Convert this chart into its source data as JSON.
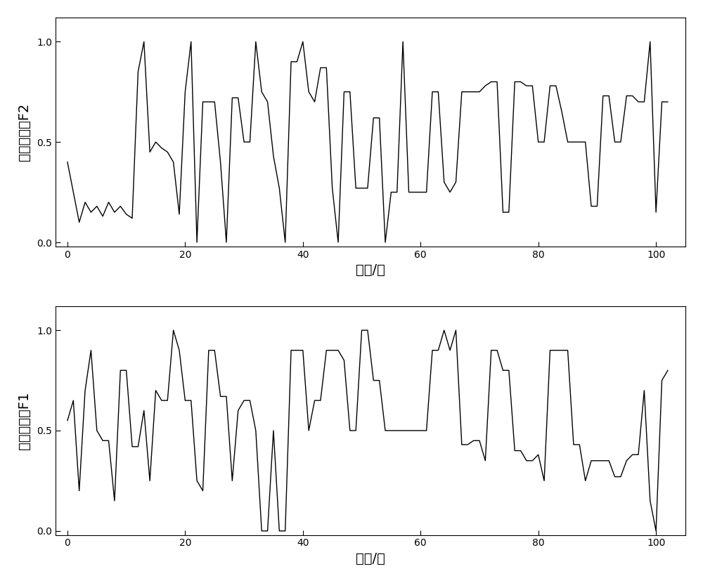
{
  "ylabel1": "归一化载荷F2",
  "ylabel2": "归一化载荷F1",
  "xlabel": "时间/秒",
  "xlim": [
    -2,
    105
  ],
  "ylim": [
    -0.02,
    1.12
  ],
  "yticks": [
    0.0,
    0.5,
    1.0
  ],
  "xticks": [
    0,
    20,
    40,
    60,
    80,
    100
  ],
  "f2_x": [
    0,
    1,
    2,
    3,
    4,
    5,
    6,
    7,
    8,
    9,
    10,
    11,
    12,
    13,
    14,
    15,
    16,
    17,
    18,
    19,
    20,
    21,
    22,
    23,
    24,
    25,
    26,
    27,
    28,
    29,
    30,
    31,
    32,
    33,
    34,
    35,
    36,
    37,
    38,
    39,
    40,
    41,
    42,
    43,
    44,
    45,
    46,
    47,
    48,
    49,
    50,
    51,
    52,
    53,
    54,
    55,
    56,
    57,
    58,
    59,
    60,
    61,
    62,
    63,
    64,
    65,
    66,
    67,
    68,
    69,
    70,
    71,
    72,
    73,
    74,
    75,
    76,
    77,
    78,
    79,
    80,
    81,
    82,
    83,
    84,
    85,
    86,
    87,
    88,
    89,
    90,
    91,
    92,
    93,
    94,
    95,
    96,
    97,
    98,
    99,
    100,
    101,
    102
  ],
  "f2_y": [
    0.4,
    0.25,
    0.1,
    0.2,
    0.15,
    0.18,
    0.13,
    0.2,
    0.15,
    0.18,
    0.14,
    0.12,
    0.85,
    1.0,
    0.45,
    0.5,
    0.47,
    0.45,
    0.4,
    0.14,
    0.75,
    1.0,
    0.0,
    0.7,
    0.7,
    0.7,
    0.4,
    0.0,
    0.72,
    0.72,
    0.5,
    0.5,
    1.0,
    0.75,
    0.7,
    0.43,
    0.27,
    0.0,
    0.9,
    0.9,
    1.0,
    0.75,
    0.7,
    0.87,
    0.87,
    0.27,
    0.0,
    0.75,
    0.75,
    0.27,
    0.27,
    0.27,
    0.62,
    0.62,
    0.0,
    0.25,
    0.25,
    1.0,
    0.25,
    0.25,
    0.25,
    0.25,
    0.75,
    0.75,
    0.3,
    0.25,
    0.3,
    0.75,
    0.75,
    0.75,
    0.75,
    0.78,
    0.8,
    0.8,
    0.15,
    0.15,
    0.8,
    0.8,
    0.78,
    0.78,
    0.5,
    0.5,
    0.78,
    0.78,
    0.65,
    0.5,
    0.5,
    0.5,
    0.5,
    0.18,
    0.18,
    0.73,
    0.73,
    0.5,
    0.5,
    0.73,
    0.73,
    0.7,
    0.7,
    1.0,
    0.15,
    0.7,
    0.7
  ],
  "f1_x": [
    0,
    1,
    2,
    3,
    4,
    5,
    6,
    7,
    8,
    9,
    10,
    11,
    12,
    13,
    14,
    15,
    16,
    17,
    18,
    19,
    20,
    21,
    22,
    23,
    24,
    25,
    26,
    27,
    28,
    29,
    30,
    31,
    32,
    33,
    34,
    35,
    36,
    37,
    38,
    39,
    40,
    41,
    42,
    43,
    44,
    45,
    46,
    47,
    48,
    49,
    50,
    51,
    52,
    53,
    54,
    55,
    56,
    57,
    58,
    59,
    60,
    61,
    62,
    63,
    64,
    65,
    66,
    67,
    68,
    69,
    70,
    71,
    72,
    73,
    74,
    75,
    76,
    77,
    78,
    79,
    80,
    81,
    82,
    83,
    84,
    85,
    86,
    87,
    88,
    89,
    90,
    91,
    92,
    93,
    94,
    95,
    96,
    97,
    98,
    99,
    100,
    101,
    102
  ],
  "f1_y": [
    0.55,
    0.65,
    0.2,
    0.7,
    0.9,
    0.5,
    0.45,
    0.45,
    0.15,
    0.8,
    0.8,
    0.42,
    0.42,
    0.6,
    0.25,
    0.7,
    0.65,
    0.65,
    1.0,
    0.9,
    0.65,
    0.65,
    0.25,
    0.2,
    0.9,
    0.9,
    0.67,
    0.67,
    0.25,
    0.6,
    0.65,
    0.65,
    0.5,
    0.0,
    0.0,
    0.5,
    0.0,
    0.0,
    0.9,
    0.9,
    0.9,
    0.5,
    0.65,
    0.65,
    0.9,
    0.9,
    0.9,
    0.85,
    0.5,
    0.5,
    1.0,
    1.0,
    0.75,
    0.75,
    0.5,
    0.5,
    0.5,
    0.5,
    0.5,
    0.5,
    0.5,
    0.5,
    0.9,
    0.9,
    1.0,
    0.9,
    1.0,
    0.43,
    0.43,
    0.45,
    0.45,
    0.35,
    0.9,
    0.9,
    0.8,
    0.8,
    0.4,
    0.4,
    0.35,
    0.35,
    0.38,
    0.25,
    0.9,
    0.9,
    0.9,
    0.9,
    0.43,
    0.43,
    0.25,
    0.35,
    0.35,
    0.35,
    0.35,
    0.27,
    0.27,
    0.35,
    0.38,
    0.38,
    0.7,
    0.15,
    0.0,
    0.75,
    0.8
  ],
  "line_color": "#000000",
  "line_width": 1.0,
  "bg_color": "#ffffff",
  "tick_fontsize": 12,
  "label_fontsize": 14
}
